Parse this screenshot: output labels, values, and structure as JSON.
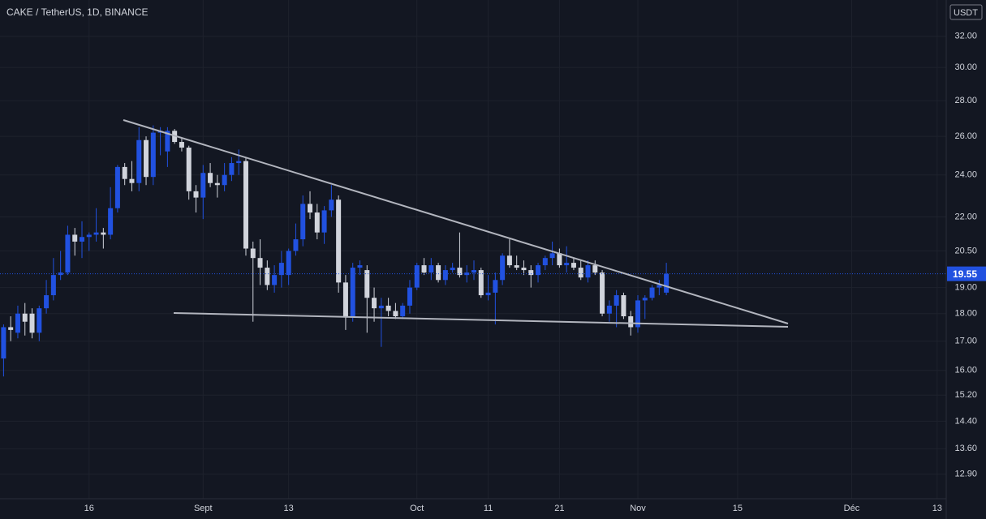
{
  "chart_data": {
    "type": "candlestick",
    "title": "CAKE / TetherUS, 1D, BINANCE",
    "currency": "USDT",
    "log_scale": true,
    "grid": true,
    "up_color": "#2151e0",
    "down_color": "#d1d4dc",
    "last_price": 19.55,
    "ylim": [
      12.26,
      34.5
    ],
    "yticks": [
      {
        "value": 32,
        "label": "32.00"
      },
      {
        "value": 30,
        "label": "30.00"
      },
      {
        "value": 28,
        "label": "28.00"
      },
      {
        "value": 26,
        "label": "26.00"
      },
      {
        "value": 24,
        "label": "24.00"
      },
      {
        "value": 22,
        "label": "22.00"
      },
      {
        "value": 20.5,
        "label": "20.50"
      },
      {
        "value": 19,
        "label": "19.00"
      },
      {
        "value": 18,
        "label": "18.00"
      },
      {
        "value": 17,
        "label": "17.00"
      },
      {
        "value": 16,
        "label": "16.00"
      },
      {
        "value": 15.2,
        "label": "15.20"
      },
      {
        "value": 14.4,
        "label": "14.40"
      },
      {
        "value": 13.6,
        "label": "13.60"
      },
      {
        "value": 12.9,
        "label": "12.90"
      }
    ],
    "categories": [
      null,
      null,
      null,
      null,
      null,
      null,
      null,
      null,
      null,
      null,
      null,
      null,
      "16",
      null,
      null,
      null,
      null,
      null,
      null,
      null,
      null,
      null,
      null,
      null,
      null,
      null,
      null,
      null,
      "Sept",
      null,
      null,
      null,
      null,
      null,
      null,
      null,
      null,
      null,
      null,
      null,
      "13",
      null,
      null,
      null,
      null,
      null,
      null,
      null,
      null,
      null,
      null,
      null,
      null,
      null,
      null,
      null,
      null,
      null,
      "Oct",
      null,
      null,
      null,
      null,
      null,
      null,
      null,
      null,
      null,
      "11",
      null,
      null,
      null,
      null,
      null,
      null,
      null,
      null,
      null,
      "21",
      null,
      null,
      null,
      null,
      null,
      null,
      null,
      null,
      null,
      null,
      "Nov",
      null,
      null,
      null,
      null,
      null,
      null,
      null,
      null,
      null,
      null,
      null,
      null,
      null,
      "15",
      null,
      null,
      null,
      null,
      null,
      null,
      null,
      null,
      null,
      null,
      null,
      null,
      null,
      null,
      null,
      "Déc",
      null,
      null,
      null,
      null,
      null,
      null,
      null,
      null,
      null,
      null,
      null,
      "13",
      null
    ],
    "open": [
      16.4,
      17.5,
      17.3,
      18.0,
      18.0,
      17.3,
      18.2,
      18.7,
      19.5,
      19.6,
      21.2,
      20.9,
      21.1,
      21.2,
      21.3,
      21.2,
      22.4,
      24.4,
      23.8,
      23.6,
      25.8,
      23.9,
      26.2,
      25.2,
      26.3,
      25.7,
      25.4,
      23.2,
      22.9,
      24.1,
      23.6,
      23.5,
      24.0,
      24.6,
      24.7,
      20.6,
      20.2,
      19.8,
      19.1,
      19.5,
      19.5,
      20.5,
      21.0,
      22.6,
      22.2,
      21.3,
      22.3,
      22.8,
      19.2,
      17.9,
      19.8,
      19.7,
      18.6,
      18.2,
      18.3,
      18.1,
      17.9,
      18.3,
      19.0,
      19.9,
      19.6,
      19.9,
      19.3,
      19.7,
      19.8,
      19.5,
      19.6,
      19.7,
      18.7,
      18.8,
      19.3,
      20.3,
      19.9,
      19.8,
      19.7,
      19.5,
      19.9,
      20.2,
      20.4,
      19.9,
      20.0,
      19.8,
      19.4,
      19.9,
      19.6,
      18.0,
      18.3,
      18.7,
      17.9,
      17.5,
      18.5,
      18.6,
      19.0,
      18.8,
      null,
      null,
      null,
      null,
      null,
      null,
      null,
      null,
      null,
      null,
      null,
      null,
      null,
      null,
      null,
      null,
      null,
      null,
      null,
      null,
      null,
      null,
      null,
      null,
      null,
      null,
      null,
      null,
      null,
      null,
      null,
      null,
      null,
      null,
      null,
      null,
      null,
      null,
      null
    ],
    "high": [
      17.6,
      17.9,
      18.3,
      18.4,
      18.2,
      18.3,
      19.3,
      20.2,
      20.5,
      21.6,
      21.5,
      21.8,
      21.3,
      22.4,
      21.5,
      23.4,
      24.5,
      24.6,
      24.7,
      26.5,
      26.0,
      26.6,
      26.5,
      26.5,
      26.4,
      25.9,
      25.5,
      23.5,
      24.5,
      24.6,
      24.0,
      24.6,
      24.9,
      25.3,
      24.9,
      20.9,
      21.0,
      20.1,
      19.9,
      20.5,
      20.6,
      21.7,
      23.0,
      23.2,
      22.6,
      22.5,
      23.5,
      23.0,
      19.5,
      20.0,
      20.1,
      19.9,
      19.0,
      18.6,
      18.6,
      18.4,
      18.4,
      19.3,
      20.0,
      20.2,
      20.2,
      20.0,
      19.9,
      20.0,
      21.3,
      19.9,
      20.1,
      19.8,
      19.5,
      19.6,
      20.4,
      21.0,
      20.3,
      20.1,
      19.9,
      20.0,
      20.3,
      20.9,
      20.6,
      20.7,
      20.2,
      20.1,
      20.1,
      20.1,
      19.7,
      18.5,
      18.9,
      18.8,
      18.1,
      18.7,
      18.7,
      19.1,
      19.3,
      20.0,
      null,
      null,
      null,
      null,
      null,
      null,
      null,
      null,
      null,
      null,
      null,
      null,
      null,
      null,
      null,
      null,
      null,
      null,
      null,
      null,
      null,
      null,
      null,
      null,
      null,
      null,
      null,
      null,
      null,
      null,
      null,
      null,
      null,
      null,
      null,
      null,
      null,
      null,
      null
    ],
    "low": [
      15.8,
      17.0,
      17.1,
      17.2,
      17.1,
      17.0,
      18.0,
      18.5,
      19.3,
      19.5,
      20.3,
      20.2,
      20.5,
      20.9,
      20.6,
      21.0,
      22.2,
      23.5,
      23.2,
      23.2,
      23.5,
      23.5,
      25.0,
      24.4,
      25.6,
      25.2,
      22.8,
      22.2,
      21.9,
      23.4,
      22.9,
      23.2,
      23.7,
      24.0,
      20.3,
      17.7,
      19.1,
      18.9,
      18.8,
      19.0,
      19.1,
      20.3,
      20.7,
      21.9,
      21.0,
      20.8,
      22.0,
      18.8,
      17.4,
      17.7,
      19.5,
      17.3,
      17.7,
      16.8,
      17.9,
      17.8,
      17.8,
      18.0,
      18.9,
      19.5,
      19.3,
      19.2,
      19.1,
      19.6,
      19.4,
      19.2,
      19.3,
      18.6,
      18.5,
      17.6,
      19.1,
      19.8,
      19.7,
      19.5,
      19.0,
      19.2,
      19.7,
      19.9,
      19.8,
      19.6,
      19.7,
      19.3,
      19.2,
      19.5,
      17.9,
      17.7,
      17.5,
      17.8,
      17.2,
      17.3,
      17.8,
      18.5,
      18.7,
      18.7,
      null,
      null,
      null,
      null,
      null,
      null,
      null,
      null,
      null,
      null,
      null,
      null,
      null,
      null,
      null,
      null,
      null,
      null,
      null,
      null,
      null,
      null,
      null,
      null,
      null,
      null,
      null,
      null,
      null,
      null,
      null,
      null,
      null,
      null,
      null,
      null,
      null,
      null,
      null
    ],
    "close": [
      17.5,
      17.4,
      18.0,
      17.7,
      17.3,
      18.2,
      18.7,
      19.5,
      19.6,
      21.2,
      20.9,
      21.1,
      21.2,
      21.3,
      21.2,
      22.4,
      24.4,
      23.8,
      23.6,
      25.8,
      23.9,
      26.2,
      26.3,
      26.3,
      25.7,
      25.4,
      23.2,
      22.9,
      24.1,
      23.6,
      23.5,
      24.0,
      24.6,
      24.7,
      20.6,
      20.2,
      19.8,
      19.1,
      19.5,
      20.0,
      20.5,
      21.0,
      22.6,
      22.2,
      21.3,
      22.3,
      22.8,
      19.2,
      17.9,
      19.8,
      19.9,
      18.6,
      18.2,
      18.3,
      18.1,
      17.9,
      18.3,
      19.0,
      19.9,
      19.6,
      19.9,
      19.3,
      19.7,
      19.8,
      19.5,
      19.6,
      19.7,
      18.7,
      18.8,
      19.3,
      20.3,
      19.9,
      19.8,
      19.7,
      19.5,
      19.9,
      20.2,
      20.4,
      19.9,
      20.0,
      19.8,
      19.4,
      19.9,
      19.6,
      18.0,
      18.3,
      18.7,
      17.9,
      17.5,
      18.5,
      18.6,
      19.0,
      19.1,
      19.55,
      null,
      null,
      null,
      null,
      null,
      null,
      null,
      null,
      null,
      null,
      null,
      null,
      null,
      null,
      null,
      null,
      null,
      null,
      null,
      null,
      null,
      null,
      null,
      null,
      null,
      null,
      null,
      null,
      null,
      null,
      null,
      null,
      null,
      null,
      null,
      null,
      null,
      null,
      null
    ]
  }
}
